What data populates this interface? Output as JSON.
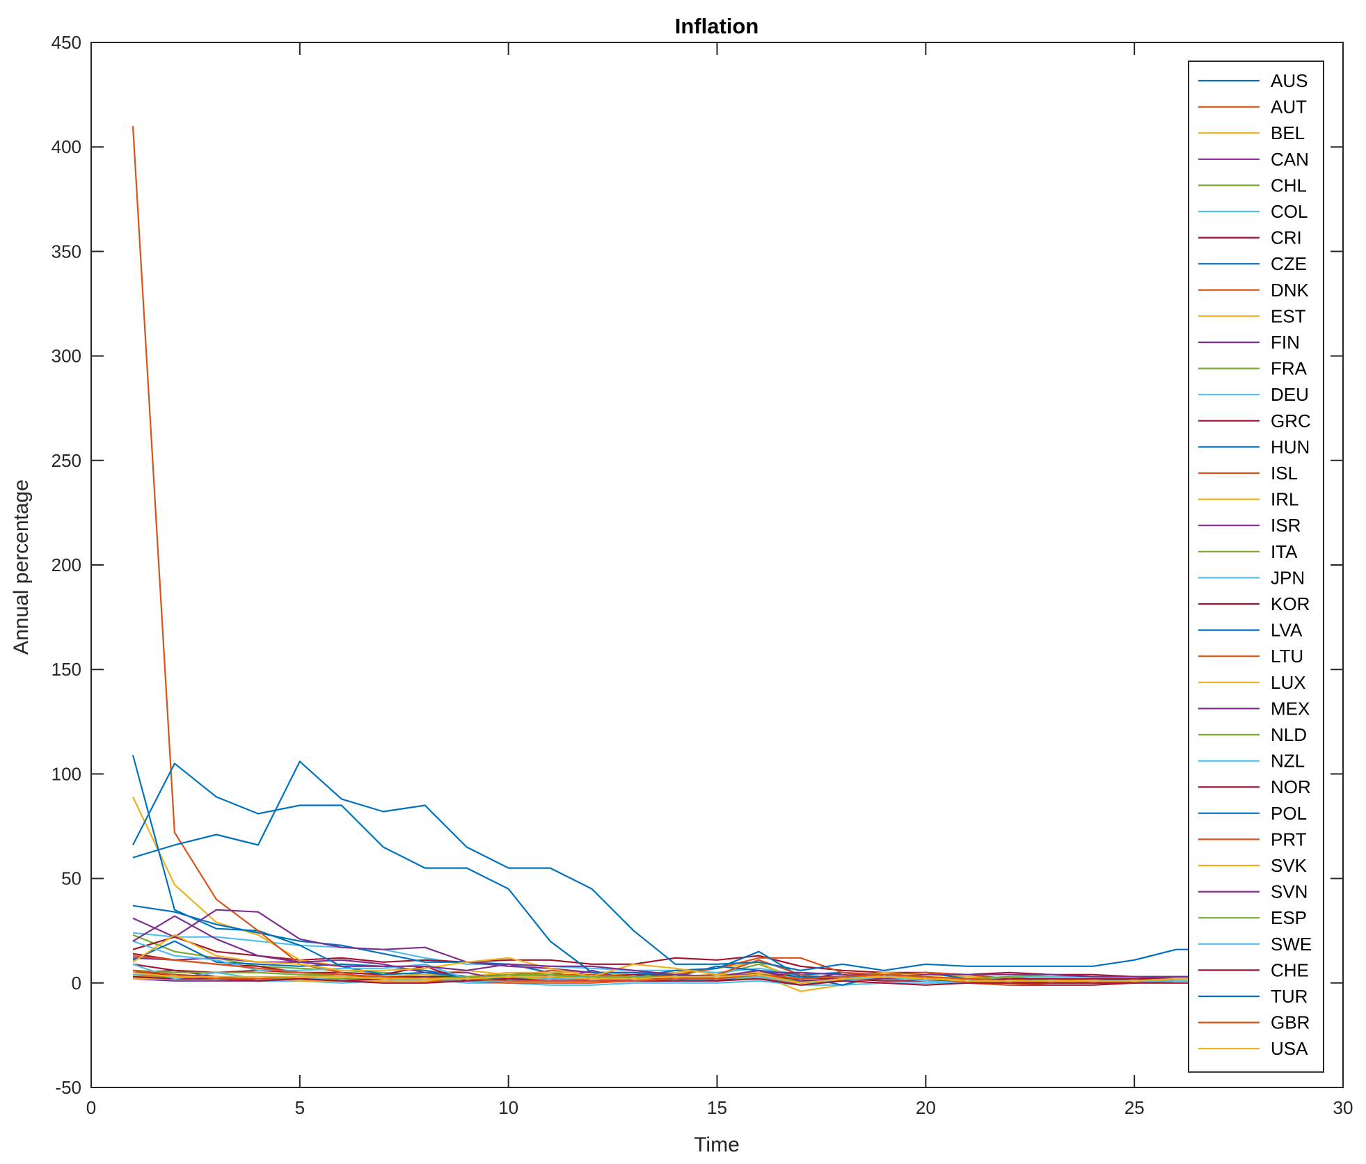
{
  "chart_data": {
    "type": "line",
    "title": "Inflation",
    "xlabel": "Time",
    "ylabel": "Annual percentage",
    "xlim": [
      0,
      30
    ],
    "ylim": [
      -50,
      450
    ],
    "xticks": [
      0,
      5,
      10,
      15,
      20,
      25,
      30
    ],
    "yticks": [
      -50,
      0,
      50,
      100,
      150,
      200,
      250,
      300,
      350,
      400,
      450
    ],
    "xtick_labels": [
      "0",
      "5",
      "10",
      "15",
      "20",
      "25",
      "30"
    ],
    "ytick_labels": [
      "-50",
      "0",
      "50",
      "100",
      "150",
      "200",
      "250",
      "300",
      "350",
      "400",
      "450"
    ],
    "grid": false,
    "legend_position": "top-right",
    "x": [
      1,
      2,
      3,
      4,
      5,
      6,
      7,
      8,
      9,
      10,
      11,
      12,
      13,
      14,
      15,
      16,
      17,
      18,
      19,
      20,
      21,
      22,
      23,
      24,
      25,
      26,
      27,
      28,
      29
    ],
    "series": [
      {
        "name": "AUS",
        "color": "#0072BD",
        "values": [
          2,
          3,
          2,
          2,
          2,
          2,
          2,
          3,
          2,
          3,
          2,
          3,
          3,
          3,
          2,
          4,
          2,
          3,
          3,
          2,
          2,
          2,
          2,
          2,
          2,
          2,
          2,
          2,
          2
        ]
      },
      {
        "name": "AUT",
        "color": "#D95319",
        "values": [
          4,
          3,
          3,
          2,
          2,
          2,
          2,
          2,
          2,
          2,
          2,
          2,
          2,
          2,
          2,
          3,
          1,
          2,
          3,
          2,
          2,
          2,
          1,
          1,
          1,
          2,
          2,
          2,
          2
        ]
      },
      {
        "name": "BEL",
        "color": "#EDB120",
        "values": [
          3,
          3,
          2,
          2,
          2,
          2,
          2,
          2,
          3,
          2,
          2,
          3,
          2,
          3,
          2,
          4,
          0,
          2,
          3,
          3,
          1,
          1,
          1,
          2,
          2,
          2,
          2,
          2,
          2
        ]
      },
      {
        "name": "CAN",
        "color": "#7E2F8E",
        "values": [
          5,
          6,
          3,
          2,
          2,
          2,
          2,
          2,
          3,
          2,
          2,
          2,
          2,
          2,
          2,
          2,
          0,
          2,
          3,
          2,
          1,
          2,
          1,
          1,
          1,
          2,
          2,
          2,
          2
        ]
      },
      {
        "name": "CHL",
        "color": "#77AC30",
        "values": [
          23,
          15,
          12,
          8,
          7,
          6,
          5,
          4,
          3,
          3,
          4,
          3,
          3,
          3,
          4,
          9,
          2,
          2,
          3,
          2,
          2,
          3,
          4,
          3,
          3,
          2,
          2,
          2,
          2
        ]
      },
      {
        "name": "COL",
        "color": "#4DBEEE",
        "values": [
          24,
          22,
          22,
          20,
          18,
          17,
          16,
          12,
          9,
          9,
          8,
          7,
          6,
          6,
          5,
          7,
          4,
          2,
          3,
          3,
          2,
          3,
          3,
          3,
          3,
          3,
          3,
          3,
          3
        ]
      },
      {
        "name": "CRI",
        "color": "#A2142F",
        "values": [
          16,
          22,
          15,
          13,
          11,
          12,
          10,
          11,
          10,
          11,
          11,
          9,
          9,
          12,
          11,
          13,
          8,
          6,
          5,
          5,
          4,
          5,
          4,
          4,
          3,
          3,
          3,
          3,
          3
        ]
      },
      {
        "name": "CZE",
        "color": "#0072BD",
        "values": [
          11,
          20,
          10,
          9,
          8,
          9,
          8,
          6,
          3,
          4,
          5,
          2,
          2,
          3,
          3,
          6,
          1,
          2,
          2,
          2,
          1,
          1,
          1,
          1,
          1,
          2,
          2,
          2,
          2
        ]
      },
      {
        "name": "DNK",
        "color": "#D95319",
        "values": [
          2,
          2,
          2,
          2,
          2,
          2,
          2,
          2,
          2,
          2,
          2,
          2,
          2,
          2,
          2,
          3,
          1,
          2,
          3,
          2,
          1,
          1,
          1,
          1,
          1,
          1,
          1,
          1,
          1
        ]
      },
      {
        "name": "EST",
        "color": "#EDB120",
        "values": [
          89,
          47,
          29,
          23,
          11,
          8,
          3,
          4,
          6,
          4,
          3,
          4,
          4,
          5,
          7,
          10,
          0,
          3,
          5,
          4,
          3,
          2,
          0,
          1,
          1,
          2,
          2,
          2,
          2
        ]
      },
      {
        "name": "FIN",
        "color": "#7E2F8E",
        "values": [
          2,
          1,
          1,
          1,
          1,
          1,
          2,
          1,
          3,
          3,
          2,
          1,
          1,
          1,
          2,
          4,
          0,
          1,
          3,
          3,
          1,
          1,
          1,
          1,
          1,
          1,
          1,
          1,
          1
        ]
      },
      {
        "name": "FRA",
        "color": "#77AC30",
        "values": [
          2,
          2,
          2,
          2,
          2,
          1,
          1,
          1,
          1,
          2,
          2,
          2,
          2,
          2,
          2,
          3,
          0,
          2,
          2,
          2,
          1,
          1,
          1,
          1,
          1,
          1,
          1,
          1,
          1
        ]
      },
      {
        "name": "DEU",
        "color": "#4DBEEE",
        "values": [
          4,
          4,
          3,
          2,
          1,
          1,
          1,
          1,
          2,
          2,
          1,
          1,
          1,
          2,
          2,
          3,
          0,
          1,
          2,
          2,
          1,
          1,
          1,
          1,
          1,
          1,
          1,
          1,
          1
        ]
      },
      {
        "name": "GRC",
        "color": "#A2142F",
        "values": [
          14,
          11,
          9,
          8,
          5,
          4,
          3,
          3,
          3,
          3,
          3,
          3,
          3,
          3,
          3,
          4,
          1,
          5,
          3,
          1,
          0,
          -1,
          -1,
          -1,
          0,
          1,
          1,
          1,
          1
        ]
      },
      {
        "name": "HUN",
        "color": "#0072BD",
        "values": [
          37,
          34,
          28,
          24,
          20,
          18,
          14,
          10,
          10,
          9,
          5,
          5,
          4,
          3,
          8,
          6,
          4,
          5,
          4,
          5,
          2,
          1,
          0,
          1,
          2,
          3,
          3,
          3,
          3
        ]
      },
      {
        "name": "ISL",
        "color": "#D95319",
        "values": [
          3,
          3,
          2,
          2,
          1,
          2,
          2,
          2,
          3,
          3,
          6,
          5,
          2,
          4,
          7,
          12,
          12,
          5,
          4,
          5,
          4,
          2,
          2,
          2,
          2,
          2,
          2,
          2,
          2
        ]
      },
      {
        "name": "IRL",
        "color": "#EDB120",
        "values": [
          2,
          2,
          2,
          2,
          2,
          2,
          2,
          2,
          3,
          5,
          5,
          5,
          4,
          2,
          3,
          4,
          -4,
          -1,
          3,
          2,
          1,
          0,
          0,
          0,
          0,
          1,
          1,
          1,
          1
        ]
      },
      {
        "name": "ISR",
        "color": "#7E2F8E",
        "values": [
          12,
          11,
          12,
          10,
          10,
          11,
          9,
          5,
          5,
          1,
          1,
          6,
          1,
          2,
          1,
          5,
          3,
          3,
          3,
          2,
          1,
          1,
          0,
          0,
          0,
          1,
          1,
          1,
          1
        ]
      },
      {
        "name": "ITA",
        "color": "#77AC30",
        "values": [
          6,
          5,
          5,
          5,
          4,
          4,
          2,
          2,
          2,
          2,
          3,
          3,
          3,
          2,
          2,
          3,
          1,
          2,
          3,
          3,
          1,
          0,
          0,
          0,
          1,
          1,
          1,
          1,
          1
        ]
      },
      {
        "name": "JPN",
        "color": "#4DBEEE",
        "values": [
          3,
          2,
          2,
          1,
          1,
          0,
          1,
          2,
          0,
          0,
          -1,
          -1,
          0,
          0,
          0,
          1,
          -1,
          -1,
          0,
          0,
          0,
          3,
          1,
          0,
          0,
          1,
          1,
          1,
          1
        ]
      },
      {
        "name": "KOR",
        "color": "#A2142F",
        "values": [
          9,
          6,
          5,
          6,
          5,
          5,
          4,
          8,
          1,
          2,
          4,
          3,
          4,
          4,
          3,
          5,
          3,
          3,
          4,
          2,
          1,
          1,
          1,
          1,
          1,
          1,
          1,
          1,
          1
        ]
      },
      {
        "name": "LVA",
        "color": "#0072BD",
        "values": [
          109,
          35,
          26,
          25,
          18,
          8,
          4,
          5,
          3,
          2,
          3,
          2,
          3,
          6,
          7,
          15,
          3,
          -1,
          4,
          2,
          0,
          1,
          0,
          0,
          1,
          2,
          2,
          2,
          2
        ]
      },
      {
        "name": "LTU",
        "color": "#D95319",
        "values": [
          410,
          72,
          40,
          25,
          9,
          5,
          1,
          1,
          1,
          0,
          0,
          0,
          1,
          3,
          4,
          11,
          4,
          1,
          4,
          3,
          1,
          1,
          0,
          0,
          1,
          2,
          2,
          2,
          2
        ]
      },
      {
        "name": "LUX",
        "color": "#EDB120",
        "values": [
          3,
          3,
          2,
          2,
          1,
          1,
          1,
          1,
          3,
          3,
          2,
          2,
          2,
          2,
          3,
          3,
          0,
          2,
          3,
          3,
          2,
          1,
          0,
          0,
          1,
          2,
          2,
          2,
          2
        ]
      },
      {
        "name": "MEX",
        "color": "#7E2F8E",
        "values": [
          31,
          22,
          35,
          34,
          21,
          17,
          16,
          17,
          10,
          8,
          7,
          5,
          5,
          4,
          3,
          5,
          5,
          4,
          3,
          4,
          4,
          4,
          4,
          3,
          3,
          3,
          3,
          3,
          3
        ]
      },
      {
        "name": "NLD",
        "color": "#77AC30",
        "values": [
          3,
          3,
          3,
          2,
          2,
          2,
          2,
          2,
          2,
          4,
          4,
          3,
          2,
          1,
          2,
          2,
          1,
          1,
          2,
          2,
          2,
          3,
          1,
          0,
          0,
          1,
          1,
          1,
          1
        ]
      },
      {
        "name": "NZL",
        "color": "#4DBEEE",
        "values": [
          20,
          13,
          11,
          6,
          6,
          7,
          7,
          9,
          2,
          1,
          2,
          3,
          2,
          2,
          3,
          4,
          2,
          2,
          4,
          1,
          1,
          1,
          1,
          0,
          1,
          1,
          1,
          1,
          1
        ]
      },
      {
        "name": "NOR",
        "color": "#A2142F",
        "values": [
          3,
          2,
          2,
          1,
          2,
          1,
          2,
          2,
          2,
          3,
          3,
          1,
          2,
          2,
          1,
          4,
          2,
          2,
          1,
          1,
          1,
          2,
          2,
          2,
          2,
          2,
          2,
          2,
          2
        ]
      },
      {
        "name": "POL",
        "color": "#0072BD",
        "values": [
          66,
          105,
          89,
          81,
          85,
          85,
          65,
          55,
          55,
          45,
          20,
          5,
          5,
          4,
          2,
          4,
          3,
          3,
          4,
          3,
          1,
          1,
          0,
          0,
          1,
          2,
          2,
          2,
          2
        ]
      },
      {
        "name": "PRT",
        "color": "#D95319",
        "values": [
          13,
          11,
          9,
          7,
          5,
          4,
          3,
          2,
          2,
          3,
          4,
          4,
          3,
          2,
          3,
          3,
          -1,
          1,
          4,
          3,
          0,
          -1,
          0,
          0,
          1,
          1,
          1,
          1,
          1
        ]
      },
      {
        "name": "SVK",
        "color": "#EDB120",
        "values": [
          10,
          23,
          13,
          10,
          9,
          6,
          6,
          7,
          10,
          12,
          7,
          3,
          9,
          7,
          4,
          5,
          2,
          1,
          4,
          3,
          1,
          0,
          0,
          0,
          1,
          2,
          2,
          2,
          2
        ]
      },
      {
        "name": "SVN",
        "color": "#7E2F8E",
        "values": [
          20,
          32,
          21,
          13,
          10,
          8,
          8,
          8,
          6,
          9,
          8,
          8,
          6,
          4,
          3,
          6,
          1,
          2,
          2,
          2,
          1,
          0,
          0,
          0,
          1,
          2,
          2,
          2,
          2
        ]
      },
      {
        "name": "ESP",
        "color": "#77AC30",
        "values": [
          6,
          5,
          5,
          5,
          4,
          3,
          2,
          2,
          3,
          3,
          4,
          3,
          3,
          3,
          3,
          4,
          0,
          2,
          3,
          2,
          1,
          0,
          0,
          0,
          0,
          1,
          1,
          1,
          1
        ]
      },
      {
        "name": "SWE",
        "color": "#4DBEEE",
        "values": [
          9,
          2,
          5,
          2,
          3,
          1,
          0,
          0,
          1,
          1,
          2,
          2,
          2,
          1,
          2,
          3,
          0,
          1,
          3,
          1,
          0,
          0,
          0,
          0,
          1,
          1,
          1,
          1,
          1
        ]
      },
      {
        "name": "CHE",
        "color": "#A2142F",
        "values": [
          5,
          4,
          3,
          1,
          2,
          1,
          0,
          0,
          1,
          2,
          1,
          1,
          1,
          1,
          1,
          2,
          -1,
          1,
          0,
          -1,
          0,
          0,
          0,
          0,
          0,
          0,
          0,
          0,
          0
        ]
      },
      {
        "name": "TUR",
        "color": "#0072BD",
        "values": [
          60,
          66,
          71,
          66,
          106,
          88,
          82,
          85,
          65,
          55,
          55,
          45,
          25,
          9,
          9,
          10,
          6,
          9,
          6,
          9,
          8,
          8,
          8,
          8,
          11,
          16,
          16,
          16,
          16
        ]
      },
      {
        "name": "GBR",
        "color": "#D95319",
        "values": [
          6,
          4,
          2,
          2,
          3,
          3,
          2,
          2,
          2,
          1,
          1,
          1,
          1,
          2,
          2,
          4,
          2,
          3,
          4,
          3,
          2,
          1,
          1,
          1,
          1,
          2,
          2,
          2,
          2
        ]
      },
      {
        "name": "USA",
        "color": "#EDB120",
        "values": [
          5,
          3,
          3,
          3,
          3,
          3,
          2,
          2,
          2,
          3,
          3,
          2,
          2,
          3,
          3,
          4,
          0,
          2,
          3,
          2,
          1,
          1,
          1,
          1,
          1,
          2,
          2,
          2,
          2
        ]
      }
    ]
  }
}
